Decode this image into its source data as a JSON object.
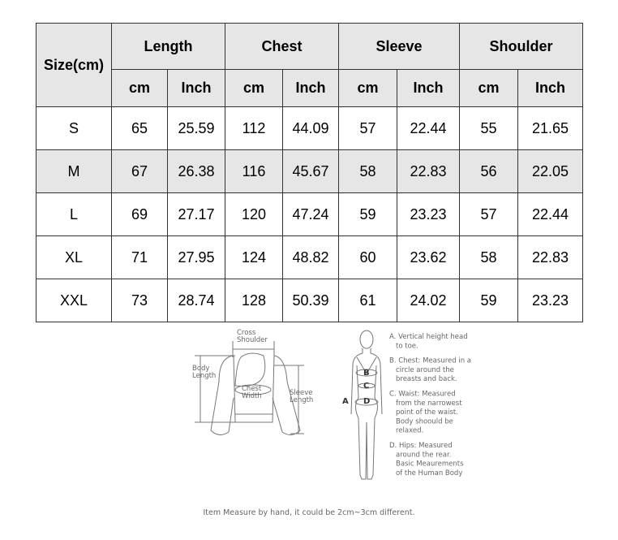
{
  "table": {
    "size_header": "Size(cm)",
    "groups": [
      "Length",
      "Chest",
      "Sleeve",
      "Shoulder"
    ],
    "units": [
      "cm",
      "Inch"
    ],
    "rows": [
      {
        "size": "S",
        "values": [
          "65",
          "25.59",
          "112",
          "44.09",
          "57",
          "22.44",
          "55",
          "21.65"
        ],
        "shaded": false
      },
      {
        "size": "M",
        "values": [
          "67",
          "26.38",
          "116",
          "45.67",
          "58",
          "22.83",
          "56",
          "22.05"
        ],
        "shaded": true
      },
      {
        "size": "L",
        "values": [
          "69",
          "27.17",
          "120",
          "47.24",
          "59",
          "23.23",
          "57",
          "22.44"
        ],
        "shaded": false
      },
      {
        "size": "XL",
        "values": [
          "71",
          "27.95",
          "124",
          "48.82",
          "60",
          "23.62",
          "58",
          "22.83"
        ],
        "shaded": false
      },
      {
        "size": "XXL",
        "values": [
          "73",
          "28.74",
          "128",
          "50.39",
          "61",
          "24.02",
          "59",
          "23.23"
        ],
        "shaded": false
      }
    ]
  },
  "diagram": {
    "garment_labels": {
      "cross_shoulder": [
        "Cross",
        "Shoulder"
      ],
      "body_length": [
        "Body",
        "Length"
      ],
      "chest_width": [
        "Chest",
        "Width"
      ],
      "sleeve_length": [
        "Sleeve",
        "Length"
      ]
    },
    "body_letters": [
      "A",
      "B",
      "C",
      "D"
    ],
    "notes": [
      [
        "A. Vertical height head",
        "to toe."
      ],
      [
        "B. Chest: Measured in a",
        "circle around the",
        "breasts and back."
      ],
      [
        "C. Waist: Measured",
        "from the narrowest",
        "point of the waist.",
        "Body shoould be",
        "relaxed."
      ],
      [
        "D. Hips: Measured",
        "around the rear.",
        "Basic Meaurements",
        "of the Human Body"
      ]
    ],
    "footnote": "Item Measure by hand, it could be 2cm~3cm different."
  }
}
